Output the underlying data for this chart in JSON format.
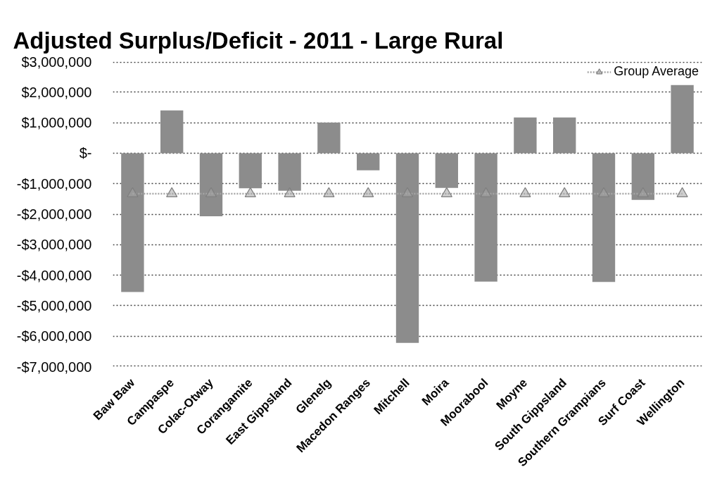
{
  "chart_data": {
    "type": "bar",
    "title": "Adjusted Surplus/Deficit - 2011 - Large Rural",
    "categories": [
      "Baw Baw",
      "Campaspe",
      "Colac-Otway",
      "Corangamite",
      "East Gippsland",
      "Glenelg",
      "Macedon Ranges",
      "Mitchell",
      "Moira",
      "Moorabool",
      "Moyne",
      "South Gippsland",
      "Southern Grampians",
      "Surf Coast",
      "Wellington"
    ],
    "series": [
      {
        "color": "#8c8c8c",
        "values": [
          -4550000,
          1400000,
          -2070000,
          -1150000,
          -1230000,
          1000000,
          -560000,
          -6220000,
          -1140000,
          -4210000,
          1170000,
          1170000,
          -4220000,
          -1530000,
          2230000
        ]
      },
      {
        "type": "line",
        "name": "Group Average",
        "color": "#a6a6a6",
        "values": [
          -1330000,
          -1330000,
          -1330000,
          -1330000,
          -1330000,
          -1330000,
          -1330000,
          -1330000,
          -1330000,
          -1330000,
          -1330000,
          -1330000,
          -1330000,
          -1330000,
          -1330000
        ]
      }
    ],
    "ylim": [
      -7000000,
      3000000
    ],
    "yticks": [
      {
        "value": 3000000,
        "label": "$3,000,000"
      },
      {
        "value": 2000000,
        "label": "$2,000,000"
      },
      {
        "value": 1000000,
        "label": "$1,000,000"
      },
      {
        "value": 0,
        "label": "$-"
      },
      {
        "value": -1000000,
        "label": "-$1,000,000"
      },
      {
        "value": -2000000,
        "label": "-$2,000,000"
      },
      {
        "value": -3000000,
        "label": "-$3,000,000"
      },
      {
        "value": -4000000,
        "label": "-$4,000,000"
      },
      {
        "value": -5000000,
        "label": "-$5,000,000"
      },
      {
        "value": -6000000,
        "label": "-$6,000,000"
      },
      {
        "value": -7000000,
        "label": "-$7,000,000"
      }
    ],
    "grid": "y",
    "legend": "top right",
    "marker": "triangle",
    "line_style": "dotted"
  }
}
